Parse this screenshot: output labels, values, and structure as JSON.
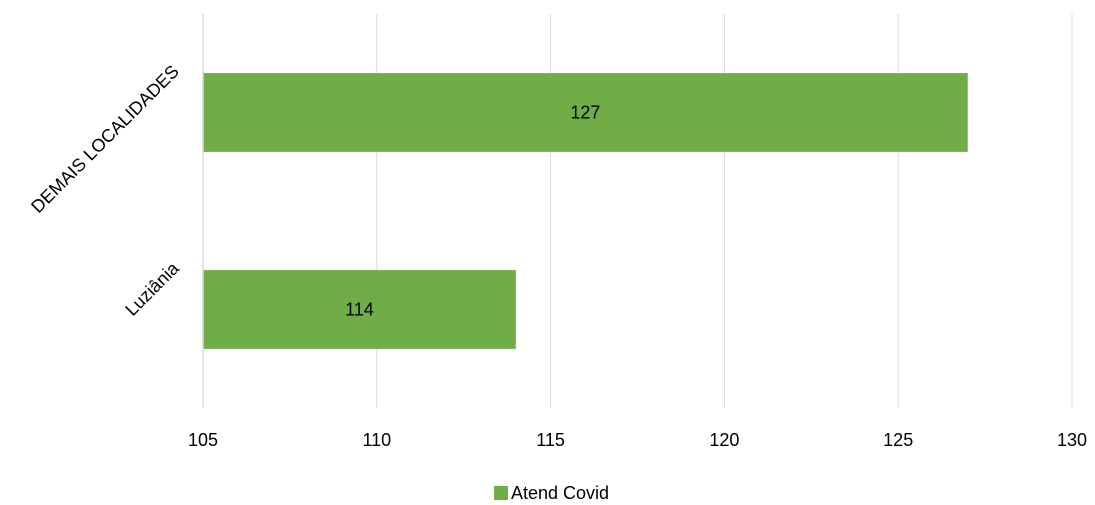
{
  "chart_data": {
    "type": "bar",
    "orientation": "horizontal",
    "title": "",
    "xlabel": "",
    "ylabel": "",
    "categories": [
      "DEMAIS LOCALIDADES",
      "Luziânia"
    ],
    "series": [
      {
        "name": "Atend Covid",
        "values": [
          127,
          114
        ],
        "color": "#70ad47"
      }
    ],
    "xlim": [
      105,
      130
    ],
    "xticks": [
      105,
      110,
      115,
      120,
      125,
      130
    ],
    "grid": true,
    "legend": "bottom-center",
    "data_labels": true
  }
}
